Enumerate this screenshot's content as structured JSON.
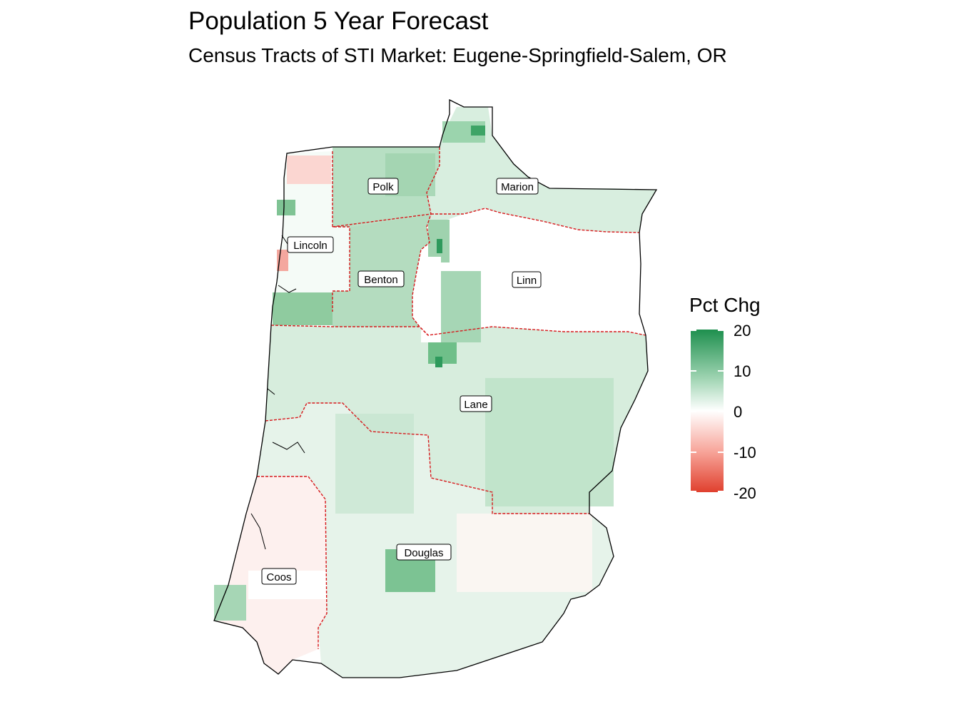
{
  "title": "Population 5 Year Forecast",
  "subtitle": "Census Tracts of STI Market: Eugene-Springfield-Salem, OR",
  "legend": {
    "title": "Pct Chg",
    "ticks": [
      "20",
      "10",
      "0",
      "-10",
      "-20"
    ],
    "colors": {
      "high": "#1e8f4e",
      "mid": "#ffffff",
      "low": "#e0402e"
    }
  },
  "counties": [
    {
      "name": "Polk",
      "pct_chg": 10
    },
    {
      "name": "Marion",
      "pct_chg": 7
    },
    {
      "name": "Lincoln",
      "pct_chg": 2
    },
    {
      "name": "Benton",
      "pct_chg": 11
    },
    {
      "name": "Linn",
      "pct_chg": 1
    },
    {
      "name": "Lane",
      "pct_chg": 5
    },
    {
      "name": "Douglas",
      "pct_chg": 6
    },
    {
      "name": "Coos",
      "pct_chg": -1
    }
  ],
  "market_boundary_color": "#d7191c"
}
